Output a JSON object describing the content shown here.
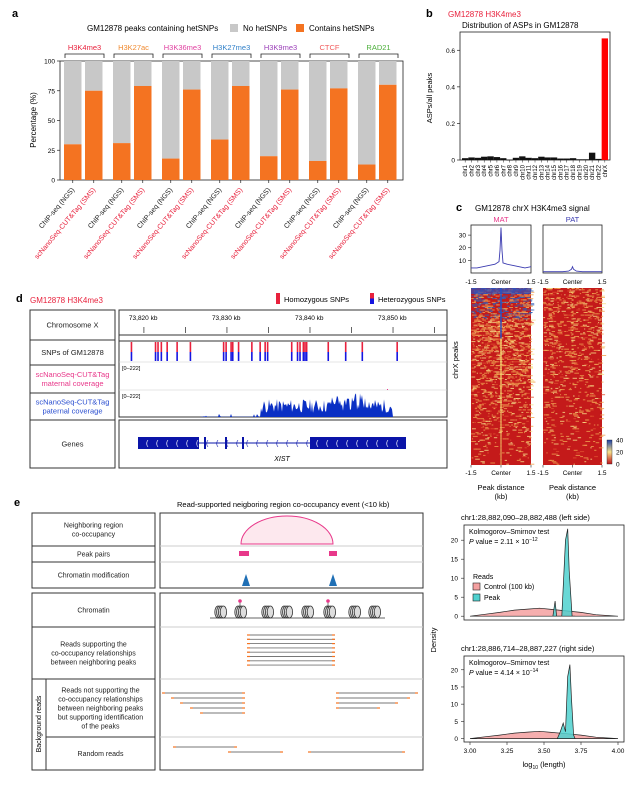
{
  "panel_labels": {
    "a": "a",
    "b": "b",
    "c": "c",
    "d": "d",
    "e": "e"
  },
  "colors": {
    "orange": "#f47321",
    "grey": "#c8c8c8",
    "red": "#ff0000",
    "black": "#111111",
    "blue_line": "#3b3bb0",
    "pink": "#e8388a",
    "snp_red": "#e8213c",
    "snp_blue": "#1515e0",
    "coverage_blue": "#0a2fc4",
    "gene_blue": "#0a14a8",
    "teal": "#4fd1cf",
    "salmon": "#f4a0a0"
  },
  "chart_data": [
    {
      "id": "a",
      "type": "bar",
      "title": "GM12878 peaks containing hetSNPs",
      "legend": [
        {
          "name": "No hetSNPs",
          "color": "#c8c8c8"
        },
        {
          "name": "Contains hetSNPs",
          "color": "#f47321"
        }
      ],
      "legend_placement": "top",
      "ylabel": "Percentage (%)",
      "ylim": [
        0,
        100
      ],
      "yticks": [
        0,
        25,
        50,
        75,
        100
      ],
      "groups": [
        {
          "name": "H3K4me3",
          "color": "#e8213c"
        },
        {
          "name": "H3K27ac",
          "color": "#f08a30"
        },
        {
          "name": "H3K36me3",
          "color": "#e040a0"
        },
        {
          "name": "H3K27me3",
          "color": "#2f7fc8"
        },
        {
          "name": "H3K9me3",
          "color": "#9b3fb8"
        },
        {
          "name": "CTCF",
          "color": "#f25c5c"
        },
        {
          "name": "RAD21",
          "color": "#4caf3a"
        }
      ],
      "categories": [
        "ChIP-seq (NGS)",
        "scNanoSeq-CUT&Tag (SMS)"
      ],
      "category_colors": [
        "#222222",
        "#e8213c"
      ],
      "series": [
        {
          "name": "Contains hetSNPs",
          "values": [
            30,
            75,
            31,
            79,
            18,
            76,
            34,
            79,
            20,
            76,
            16,
            77,
            13,
            80
          ]
        },
        {
          "name": "No hetSNPs",
          "values": [
            70,
            25,
            69,
            21,
            82,
            24,
            66,
            21,
            80,
            24,
            84,
            23,
            87,
            20
          ]
        }
      ]
    },
    {
      "id": "b",
      "type": "bar",
      "subtitle": "GM12878 H3K4me3",
      "title": "Distribution of ASPs in GM12878",
      "ylabel": "ASPs/all peaks",
      "ylim": [
        0,
        0.7
      ],
      "yticks": [
        0,
        0.2,
        0.4,
        0.6
      ],
      "categories": [
        "chr1",
        "chr2",
        "chr3",
        "chr4",
        "chr5",
        "chr6",
        "chr7",
        "chr8",
        "chr9",
        "chr10",
        "chr11",
        "chr12",
        "chr13",
        "chr14",
        "chr15",
        "chr16",
        "chr17",
        "chr18",
        "chr19",
        "chr20",
        "chr21",
        "chr22",
        "chrX"
      ],
      "values": [
        0.01,
        0.014,
        0.012,
        0.018,
        0.02,
        0.016,
        0.01,
        0.002,
        0.012,
        0.02,
        0.012,
        0.01,
        0.018,
        0.014,
        0.014,
        0.008,
        0.008,
        0.01,
        0.004,
        0.004,
        0.04,
        0.006,
        0.665
      ],
      "highlight": {
        "category": "chrX",
        "color": "#ff0000"
      }
    },
    {
      "id": "c",
      "type": "line",
      "title": "GM12878 chrX H3K4me3 signal",
      "panels": [
        {
          "name": "MAT",
          "color": "#e8388a",
          "x": [
            -1.5,
            -1.2,
            -0.9,
            -0.6,
            -0.3,
            -0.1,
            -0.05,
            0,
            0.05,
            0.1,
            0.3,
            0.6,
            0.9,
            1.2,
            1.5
          ],
          "y": [
            4,
            4,
            5,
            6,
            7,
            9,
            18,
            36,
            18,
            8,
            7,
            6,
            5,
            4,
            5
          ]
        },
        {
          "name": "PAT",
          "color": "#3b3bb0",
          "x": [
            -1.5,
            -1.0,
            -0.5,
            -0.2,
            -0.05,
            0,
            0.05,
            0.2,
            0.5,
            1.0,
            1.5
          ],
          "y": [
            1,
            1,
            1,
            1.5,
            3,
            5,
            3,
            1.5,
            1,
            1,
            1
          ]
        }
      ],
      "yticks": [
        10,
        20,
        30
      ],
      "ylim": [
        0,
        38
      ],
      "xticks": [
        "-1.5",
        "Center",
        "1.5"
      ],
      "heatmap": {
        "ylabel": "chrX peaks",
        "xlabel": "Peak distance (kb)",
        "colorbar": {
          "ticks": [
            0,
            20,
            40
          ],
          "colors": [
            "#c0101a",
            "#f7e08a",
            "#1a3fa8"
          ]
        }
      }
    },
    {
      "id": "e-left",
      "type": "area",
      "title": "chr1:28,882,090–28,882,488 (left side)",
      "test": "Kolmogorov–Smirnov test",
      "p_label": "P value = 2.11 × 10",
      "p_exp": "−12",
      "ylabel": "Density",
      "xlim": [
        3.0,
        4.0
      ],
      "ylim": [
        -1,
        24
      ],
      "yticks": [
        0,
        5,
        10,
        15,
        20
      ],
      "legend_title": "Reads",
      "legend": [
        {
          "name": "Control (100 kb)",
          "color": "#f4a0a0"
        },
        {
          "name": "Peak",
          "color": "#4fd1cf"
        }
      ],
      "series": [
        {
          "name": "Control (100 kb)",
          "x": [
            3.0,
            3.1,
            3.2,
            3.3,
            3.4,
            3.47,
            3.55,
            3.65,
            3.75,
            3.85,
            4.0
          ],
          "y": [
            0,
            0.5,
            1.0,
            1.6,
            1.9,
            2.1,
            1.8,
            1.4,
            1.0,
            0.4,
            0
          ]
        },
        {
          "name": "Peak",
          "x": [
            3.56,
            3.575,
            3.585,
            3.6,
            3.62,
            3.645,
            3.66,
            3.67,
            3.69,
            3.71
          ],
          "y": [
            0,
            4,
            0,
            0,
            0,
            20,
            23,
            12,
            0,
            0
          ]
        }
      ]
    },
    {
      "id": "e-right",
      "type": "area",
      "title": "chr1:28,886,714–28,887,227 (right side)",
      "test": "Kolmogorov–Smirnov test",
      "p_label": "P value = 4.14 × 10",
      "p_exp": "−14",
      "ylabel": "Density",
      "xlabel": "log10 (length)",
      "xlim": [
        3.0,
        4.0
      ],
      "ylim": [
        -1,
        24
      ],
      "xticks": [
        3.0,
        3.25,
        3.5,
        3.75,
        4.0
      ],
      "yticks": [
        0,
        5,
        10,
        15,
        20
      ],
      "series": [
        {
          "name": "Control (100 kb)",
          "x": [
            3.0,
            3.1,
            3.2,
            3.3,
            3.4,
            3.47,
            3.55,
            3.65,
            3.75,
            3.85,
            4.0
          ],
          "y": [
            0,
            0.5,
            1.0,
            1.6,
            1.9,
            2.1,
            1.8,
            1.4,
            1.0,
            0.4,
            0
          ]
        },
        {
          "name": "Peak",
          "x": [
            3.59,
            3.61,
            3.63,
            3.645,
            3.66,
            3.675,
            3.685,
            3.7,
            3.71
          ],
          "y": [
            0,
            2,
            4.5,
            2,
            18,
            21.5,
            12,
            1,
            0
          ]
        }
      ]
    }
  ],
  "panel_d": {
    "subtitle": "GM12878 H3K4me3",
    "legend": [
      {
        "name": "Homozygous SNPs"
      },
      {
        "name": "Heterozygous SNPs"
      }
    ],
    "rows": [
      {
        "label": "Chromosome X",
        "color": "#222222"
      },
      {
        "label": "SNPs of GM12878",
        "color": "#222222"
      },
      {
        "label": "scNanoSeq-CUT&Tag\nmaternal coverage",
        "color": "#e8388a"
      },
      {
        "label": "scNanoSeq-CUT&Tag\npaternal coverage",
        "color": "#2b4fd0"
      },
      {
        "label": "Genes",
        "color": "#222222"
      }
    ],
    "ticks": [
      "73,820 kb",
      "73,830 kb",
      "73,840 kb",
      "73,850 kb"
    ],
    "range_label": "[0–222]",
    "gene": "XIST",
    "snp_positions_kb": [
      73818.5,
      73821.4,
      73821.7,
      73822.1,
      73822.8,
      73824.0,
      73825.6,
      73829.6,
      73829.9,
      73830.5,
      73830.7,
      73831.4,
      73833.0,
      73834.0,
      73834.6,
      73834.9,
      73837.8,
      73838.5,
      73838.8,
      73839.2,
      73839.4,
      73839.6,
      73842.2,
      73844.3,
      73846.3,
      73850.5
    ]
  },
  "panel_e": {
    "title": "Read-supported neigboring region co-occupancy event (<10 kb)",
    "rows": [
      "Neighboring region\nco-occupancy",
      "Peak pairs",
      "Chromatin modification",
      "Chromatin",
      "Reads supporting the\nco-occupancy relationships\nbetween neighboring peaks",
      "Reads not supporting the\nco-occupancy relationships\nbetween neighboring peaks\nbut supporting identification\nof the peaks",
      "Random reads"
    ],
    "group_label": "Background reads"
  }
}
